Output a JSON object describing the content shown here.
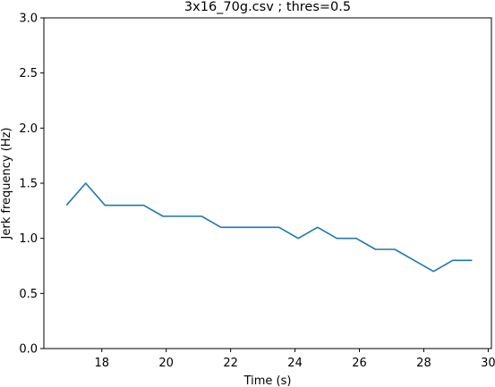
{
  "chart_data": {
    "type": "line",
    "title": "3x16_70g.csv ; thres=0.5",
    "xlabel": "Time (s)",
    "ylabel": "Jerk frequency (Hz)",
    "xlim": [
      16.2,
      30.1
    ],
    "ylim": [
      0.0,
      3.0
    ],
    "xticks": [
      18,
      20,
      22,
      24,
      26,
      28,
      30
    ],
    "yticks": [
      0.0,
      0.5,
      1.0,
      1.5,
      2.0,
      2.5,
      3.0
    ],
    "xtick_labels": [
      "18",
      "20",
      "22",
      "24",
      "26",
      "28",
      "30"
    ],
    "ytick_labels": [
      "0.0",
      "0.5",
      "1.0",
      "1.5",
      "2.0",
      "2.5",
      "3.0"
    ],
    "grid": false,
    "series": [
      {
        "color": "#1f77b4",
        "x": [
          16.9,
          17.5,
          18.1,
          18.7,
          19.3,
          19.9,
          20.5,
          21.1,
          21.7,
          22.3,
          22.9,
          23.5,
          24.1,
          24.7,
          25.3,
          25.9,
          26.5,
          27.1,
          27.7,
          28.3,
          28.9,
          29.5
        ],
        "y": [
          1.3,
          1.5,
          1.3,
          1.3,
          1.3,
          1.2,
          1.2,
          1.2,
          1.1,
          1.1,
          1.1,
          1.1,
          1.0,
          1.1,
          1.0,
          1.0,
          0.9,
          0.9,
          0.8,
          0.7,
          0.8,
          0.8
        ]
      }
    ]
  }
}
